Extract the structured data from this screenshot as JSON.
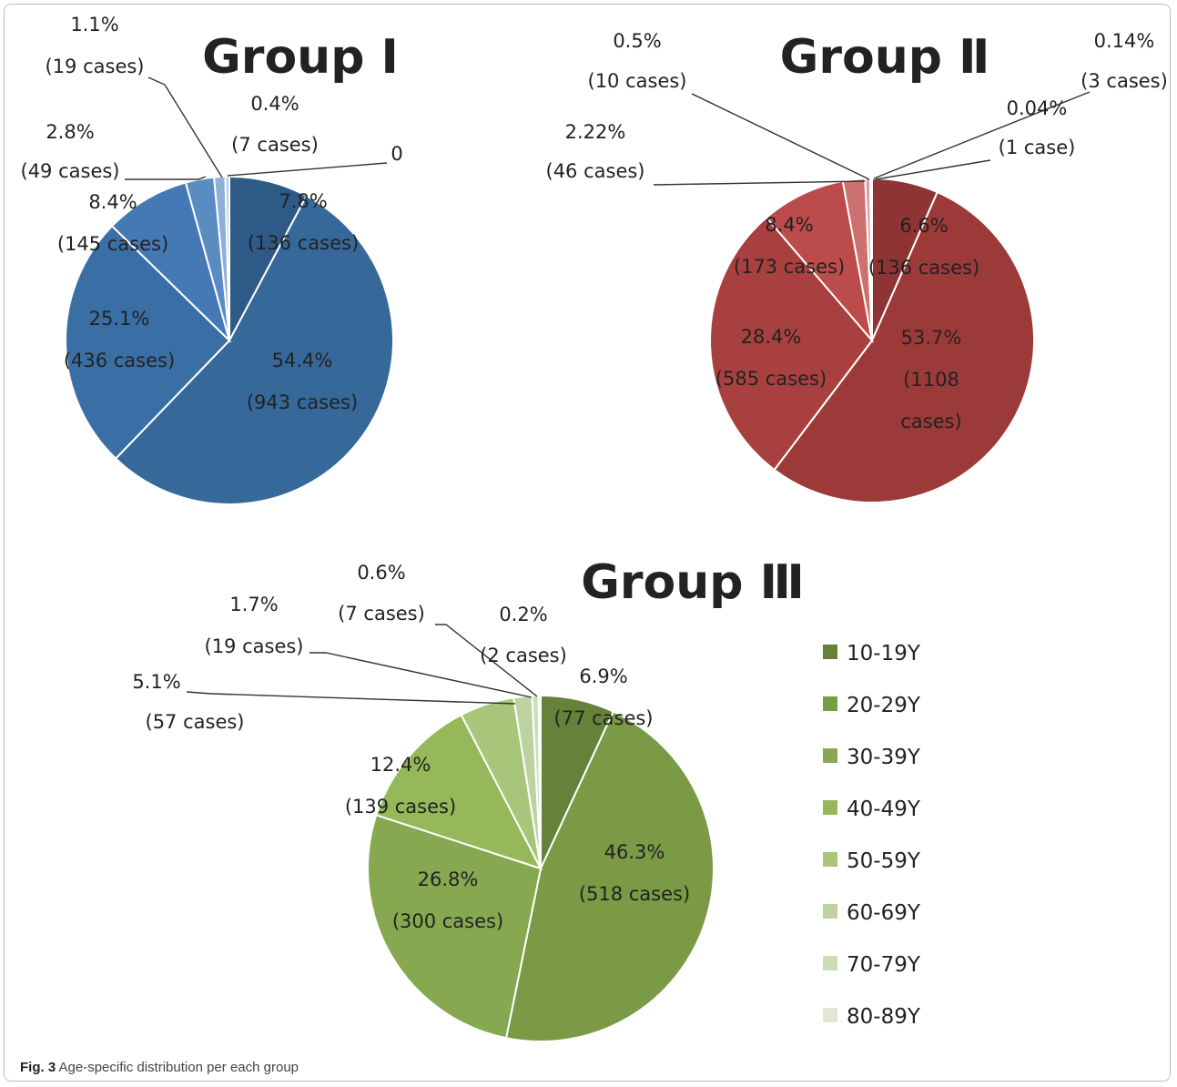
{
  "caption": {
    "label": "Fig. 3",
    "text": "Age-specific distribution per each group"
  },
  "legend": {
    "items": [
      {
        "label": "10-19Y",
        "color": "#64823A"
      },
      {
        "label": "20-29Y",
        "color": "#7A9A45"
      },
      {
        "label": "30-39Y",
        "color": "#86A850"
      },
      {
        "label": "40-49Y",
        "color": "#95B85A"
      },
      {
        "label": "50-59Y",
        "color": "#A8C67A"
      },
      {
        "label": "60-69Y",
        "color": "#BCD29F"
      },
      {
        "label": "70-79Y",
        "color": "#CDDDB7"
      },
      {
        "label": "80-89Y",
        "color": "#DFE8D1"
      }
    ]
  },
  "chart_data": [
    {
      "type": "pie",
      "title": "Group Ⅰ",
      "categories": [
        "10-19Y",
        "20-29Y",
        "30-39Y",
        "40-49Y",
        "50-59Y",
        "60-69Y",
        "70-79Y",
        "80-89Y"
      ],
      "values": [
        7.8,
        54.4,
        25.1,
        8.4,
        2.8,
        1.1,
        0.4,
        0
      ],
      "counts": [
        136,
        943,
        436,
        145,
        49,
        19,
        7,
        0
      ],
      "colors": [
        "#2D5A86",
        "#36689A",
        "#3A6FA6",
        "#4479B5",
        "#5B8BC3",
        "#8FAFD8",
        "#B8CDE8",
        "#DCE6F3"
      ],
      "labels": [
        {
          "pct": "7.8%",
          "cases": "(136 cases)"
        },
        {
          "pct": "54.4%",
          "cases": "(943 cases)"
        },
        {
          "pct": "25.1%",
          "cases": "(436 cases)"
        },
        {
          "pct": "8.4%",
          "cases": "(145 cases)"
        },
        {
          "pct": "2.8%",
          "cases": "(49 cases)"
        },
        {
          "pct": "1.1%",
          "cases": "(19 cases)"
        },
        {
          "pct": "0.4%",
          "cases": "(7 cases)"
        },
        {
          "pct": "0",
          "cases": ""
        }
      ]
    },
    {
      "type": "pie",
      "title": "Group Ⅱ",
      "categories": [
        "10-19Y",
        "20-29Y",
        "30-39Y",
        "40-49Y",
        "50-59Y",
        "60-69Y",
        "70-79Y",
        "80-89Y"
      ],
      "values": [
        6.6,
        53.7,
        28.4,
        8.4,
        2.22,
        0.5,
        0.14,
        0.04
      ],
      "counts": [
        136,
        1108,
        585,
        173,
        46,
        10,
        3,
        1
      ],
      "colors": [
        "#8E3434",
        "#9C3A3A",
        "#A84040",
        "#BC4B4B",
        "#CC7070",
        "#DE9C9C",
        "#ECC6C6",
        "#F6E3E3"
      ],
      "labels": [
        {
          "pct": "6.6%",
          "cases": "(136 cases)"
        },
        {
          "pct": "53.7%",
          "cases": "(1108",
          "cases2": "cases)"
        },
        {
          "pct": "28.4%",
          "cases": "(585 cases)"
        },
        {
          "pct": "8.4%",
          "cases": "(173 cases)"
        },
        {
          "pct": "2.22%",
          "cases": "(46 cases)"
        },
        {
          "pct": "0.5%",
          "cases": "(10 cases)"
        },
        {
          "pct": "0.14%",
          "cases": "(3 cases)"
        },
        {
          "pct": "0.04%",
          "cases": "(1 case)"
        }
      ]
    },
    {
      "type": "pie",
      "title": "Group Ⅲ",
      "categories": [
        "10-19Y",
        "20-29Y",
        "30-39Y",
        "40-49Y",
        "50-59Y",
        "60-69Y",
        "70-79Y",
        "80-89Y"
      ],
      "values": [
        6.9,
        46.3,
        26.8,
        12.4,
        5.1,
        1.7,
        0.6,
        0.2
      ],
      "counts": [
        77,
        518,
        300,
        139,
        57,
        19,
        7,
        2
      ],
      "colors": [
        "#64823A",
        "#7A9A45",
        "#86A850",
        "#95B85A",
        "#A8C67A",
        "#BCD29F",
        "#CDDDB7",
        "#DFE8D1"
      ],
      "labels": [
        {
          "pct": "6.9%",
          "cases": "(77 cases)"
        },
        {
          "pct": "46.3%",
          "cases": "(518 cases)"
        },
        {
          "pct": "26.8%",
          "cases": "(300 cases)"
        },
        {
          "pct": "12.4%",
          "cases": "(139 cases)"
        },
        {
          "pct": "5.1%",
          "cases": "(57 cases)"
        },
        {
          "pct": "1.7%",
          "cases": "(19 cases)"
        },
        {
          "pct": "0.6%",
          "cases": "(7 cases)"
        },
        {
          "pct": "0.2%",
          "cases": "(2 cases)"
        }
      ]
    }
  ]
}
